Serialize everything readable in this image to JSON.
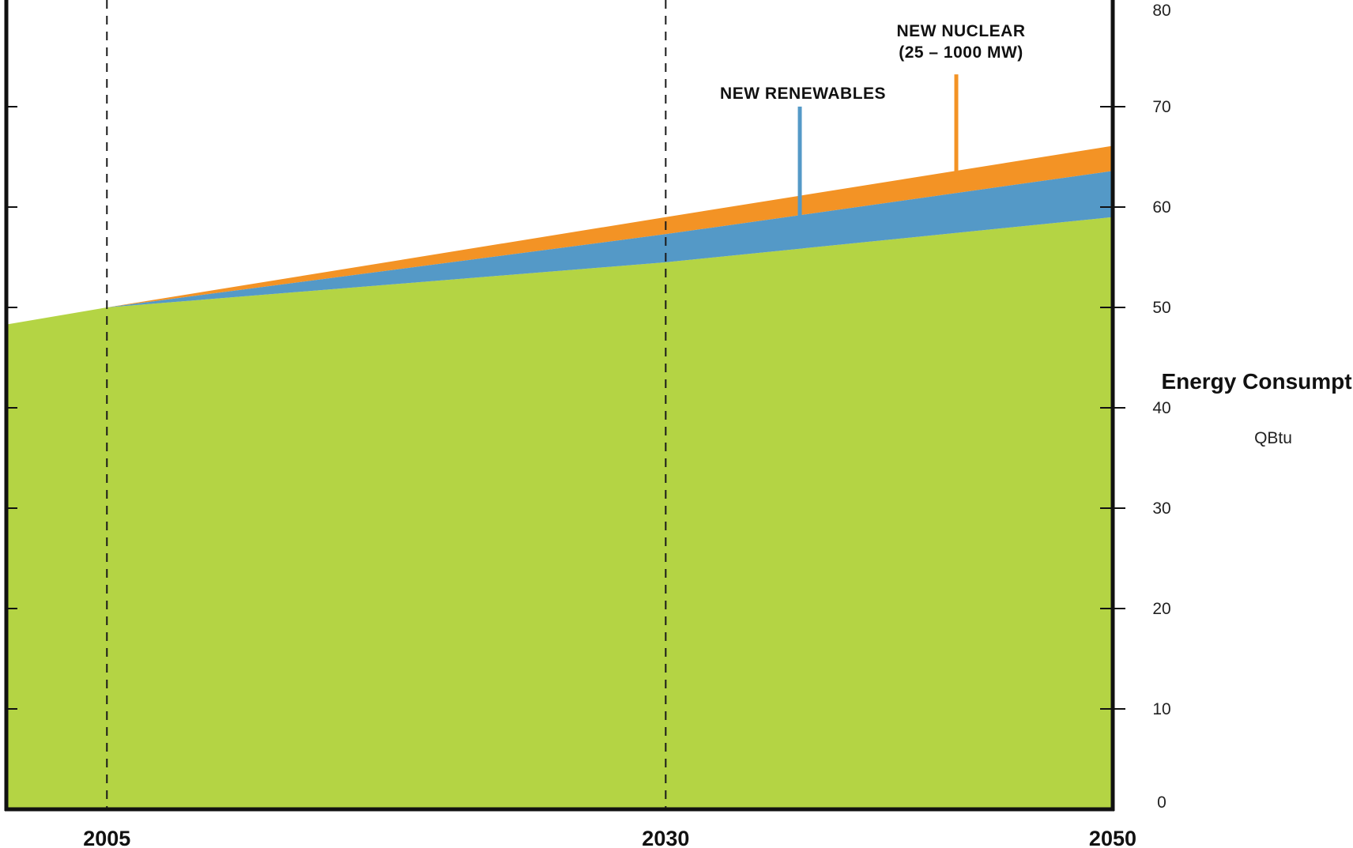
{
  "chart_data": {
    "type": "area",
    "x_ticks": [
      2005,
      2030,
      2050
    ],
    "x_range": [
      2000.5,
      2050
    ],
    "ylim": [
      0,
      80
    ],
    "y_ticks": [
      0,
      10,
      20,
      30,
      40,
      50,
      60,
      70,
      80
    ],
    "y_axis_position": "right",
    "y_axis_title": "Energy Consumption",
    "y_axis_unit": "QBtu",
    "reference_lines_x": [
      2005,
      2030
    ],
    "series": [
      {
        "key": "base",
        "x": [
          2000.5,
          2005,
          2030,
          2050
        ],
        "values": [
          48.3,
          50,
          54.5,
          59
        ],
        "color": "#b4d444"
      },
      {
        "key": "renewables",
        "name": "NEW RENEWABLES",
        "x": [
          2005,
          2030,
          2050
        ],
        "values": [
          0,
          2.8,
          4.6
        ],
        "color": "#5499c7",
        "label_year": 2036,
        "label_value": 70.8
      },
      {
        "key": "nuclear",
        "name": "NEW NUCLEAR",
        "name_line2": "(25 – 1000 MW)",
        "x": [
          2005,
          2030,
          2050
        ],
        "values": [
          0,
          1.7,
          2.5
        ],
        "color": "#f39325",
        "label_year": 2043,
        "label_value": 77
      }
    ]
  }
}
